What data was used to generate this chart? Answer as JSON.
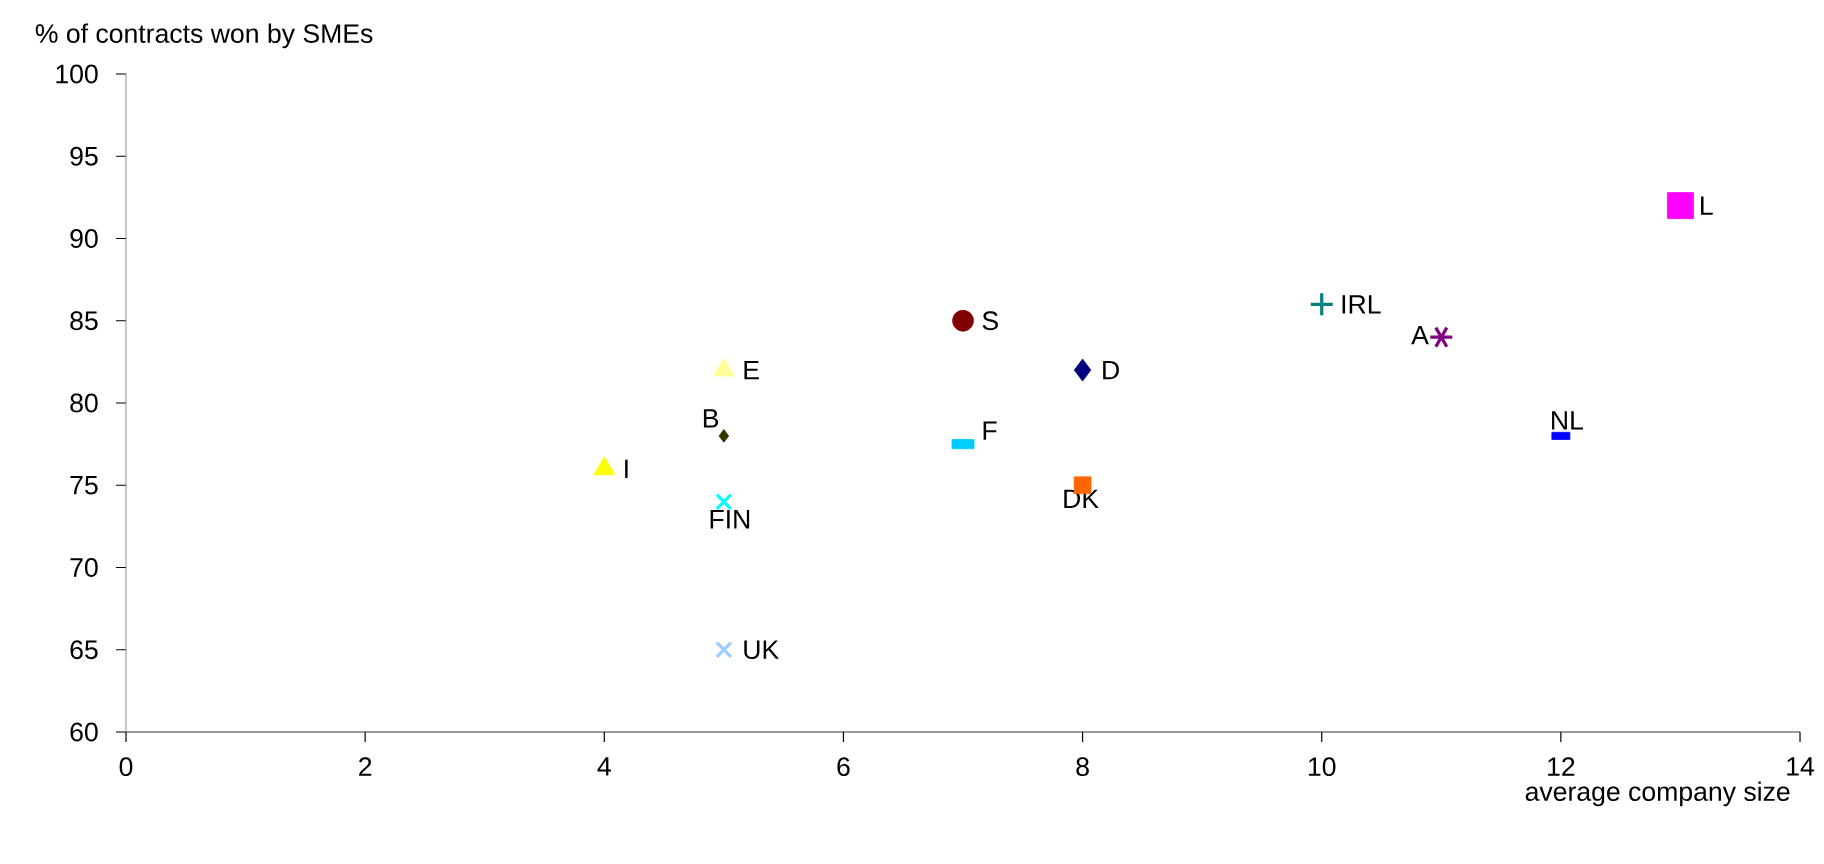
{
  "chart_data": {
    "type": "scatter",
    "xlabel": "average company size",
    "ylabel": "% of contracts won by SMEs",
    "xlim": [
      0,
      14
    ],
    "ylim": [
      60,
      100
    ],
    "xticks": [
      0,
      2,
      4,
      6,
      8,
      10,
      12,
      14
    ],
    "yticks": [
      60,
      65,
      70,
      75,
      80,
      85,
      90,
      95,
      100
    ],
    "series": [
      {
        "name": "I",
        "color": "#ffff00",
        "marker": "triangle",
        "x": [
          4
        ],
        "values": [
          76
        ]
      },
      {
        "name": "E",
        "color": "#ffff99",
        "marker": "triangle",
        "x": [
          5
        ],
        "values": [
          82
        ]
      },
      {
        "name": "B",
        "color": "#333300",
        "marker": "diamond",
        "x": [
          5
        ],
        "values": [
          78
        ]
      },
      {
        "name": "FIN",
        "color": "#00ffff",
        "marker": "cross",
        "x": [
          5
        ],
        "values": [
          74
        ]
      },
      {
        "name": "UK",
        "color": "#99ccff",
        "marker": "cross",
        "x": [
          5
        ],
        "values": [
          65
        ]
      },
      {
        "name": "S",
        "color": "#800000",
        "marker": "circle",
        "x": [
          7
        ],
        "values": [
          85
        ]
      },
      {
        "name": "F",
        "color": "#00ccff",
        "marker": "square",
        "x": [
          7
        ],
        "values": [
          77.5
        ]
      },
      {
        "name": "D",
        "color": "#000080",
        "marker": "diamond",
        "x": [
          8
        ],
        "values": [
          82
        ]
      },
      {
        "name": "DK",
        "color": "#ff6600",
        "marker": "square",
        "x": [
          8
        ],
        "values": [
          75
        ]
      },
      {
        "name": "IRL",
        "color": "#008080",
        "marker": "cross",
        "x": [
          10
        ],
        "values": [
          86
        ]
      },
      {
        "name": "A",
        "color": "#800080",
        "marker": "cross",
        "x": [
          11
        ],
        "values": [
          84
        ]
      },
      {
        "name": "NL",
        "color": "#0000ff",
        "marker": "square",
        "x": [
          12
        ],
        "values": [
          78
        ]
      },
      {
        "name": "L",
        "color": "#ff00ff",
        "marker": "square",
        "x": [
          13
        ],
        "values": [
          92
        ]
      }
    ]
  }
}
